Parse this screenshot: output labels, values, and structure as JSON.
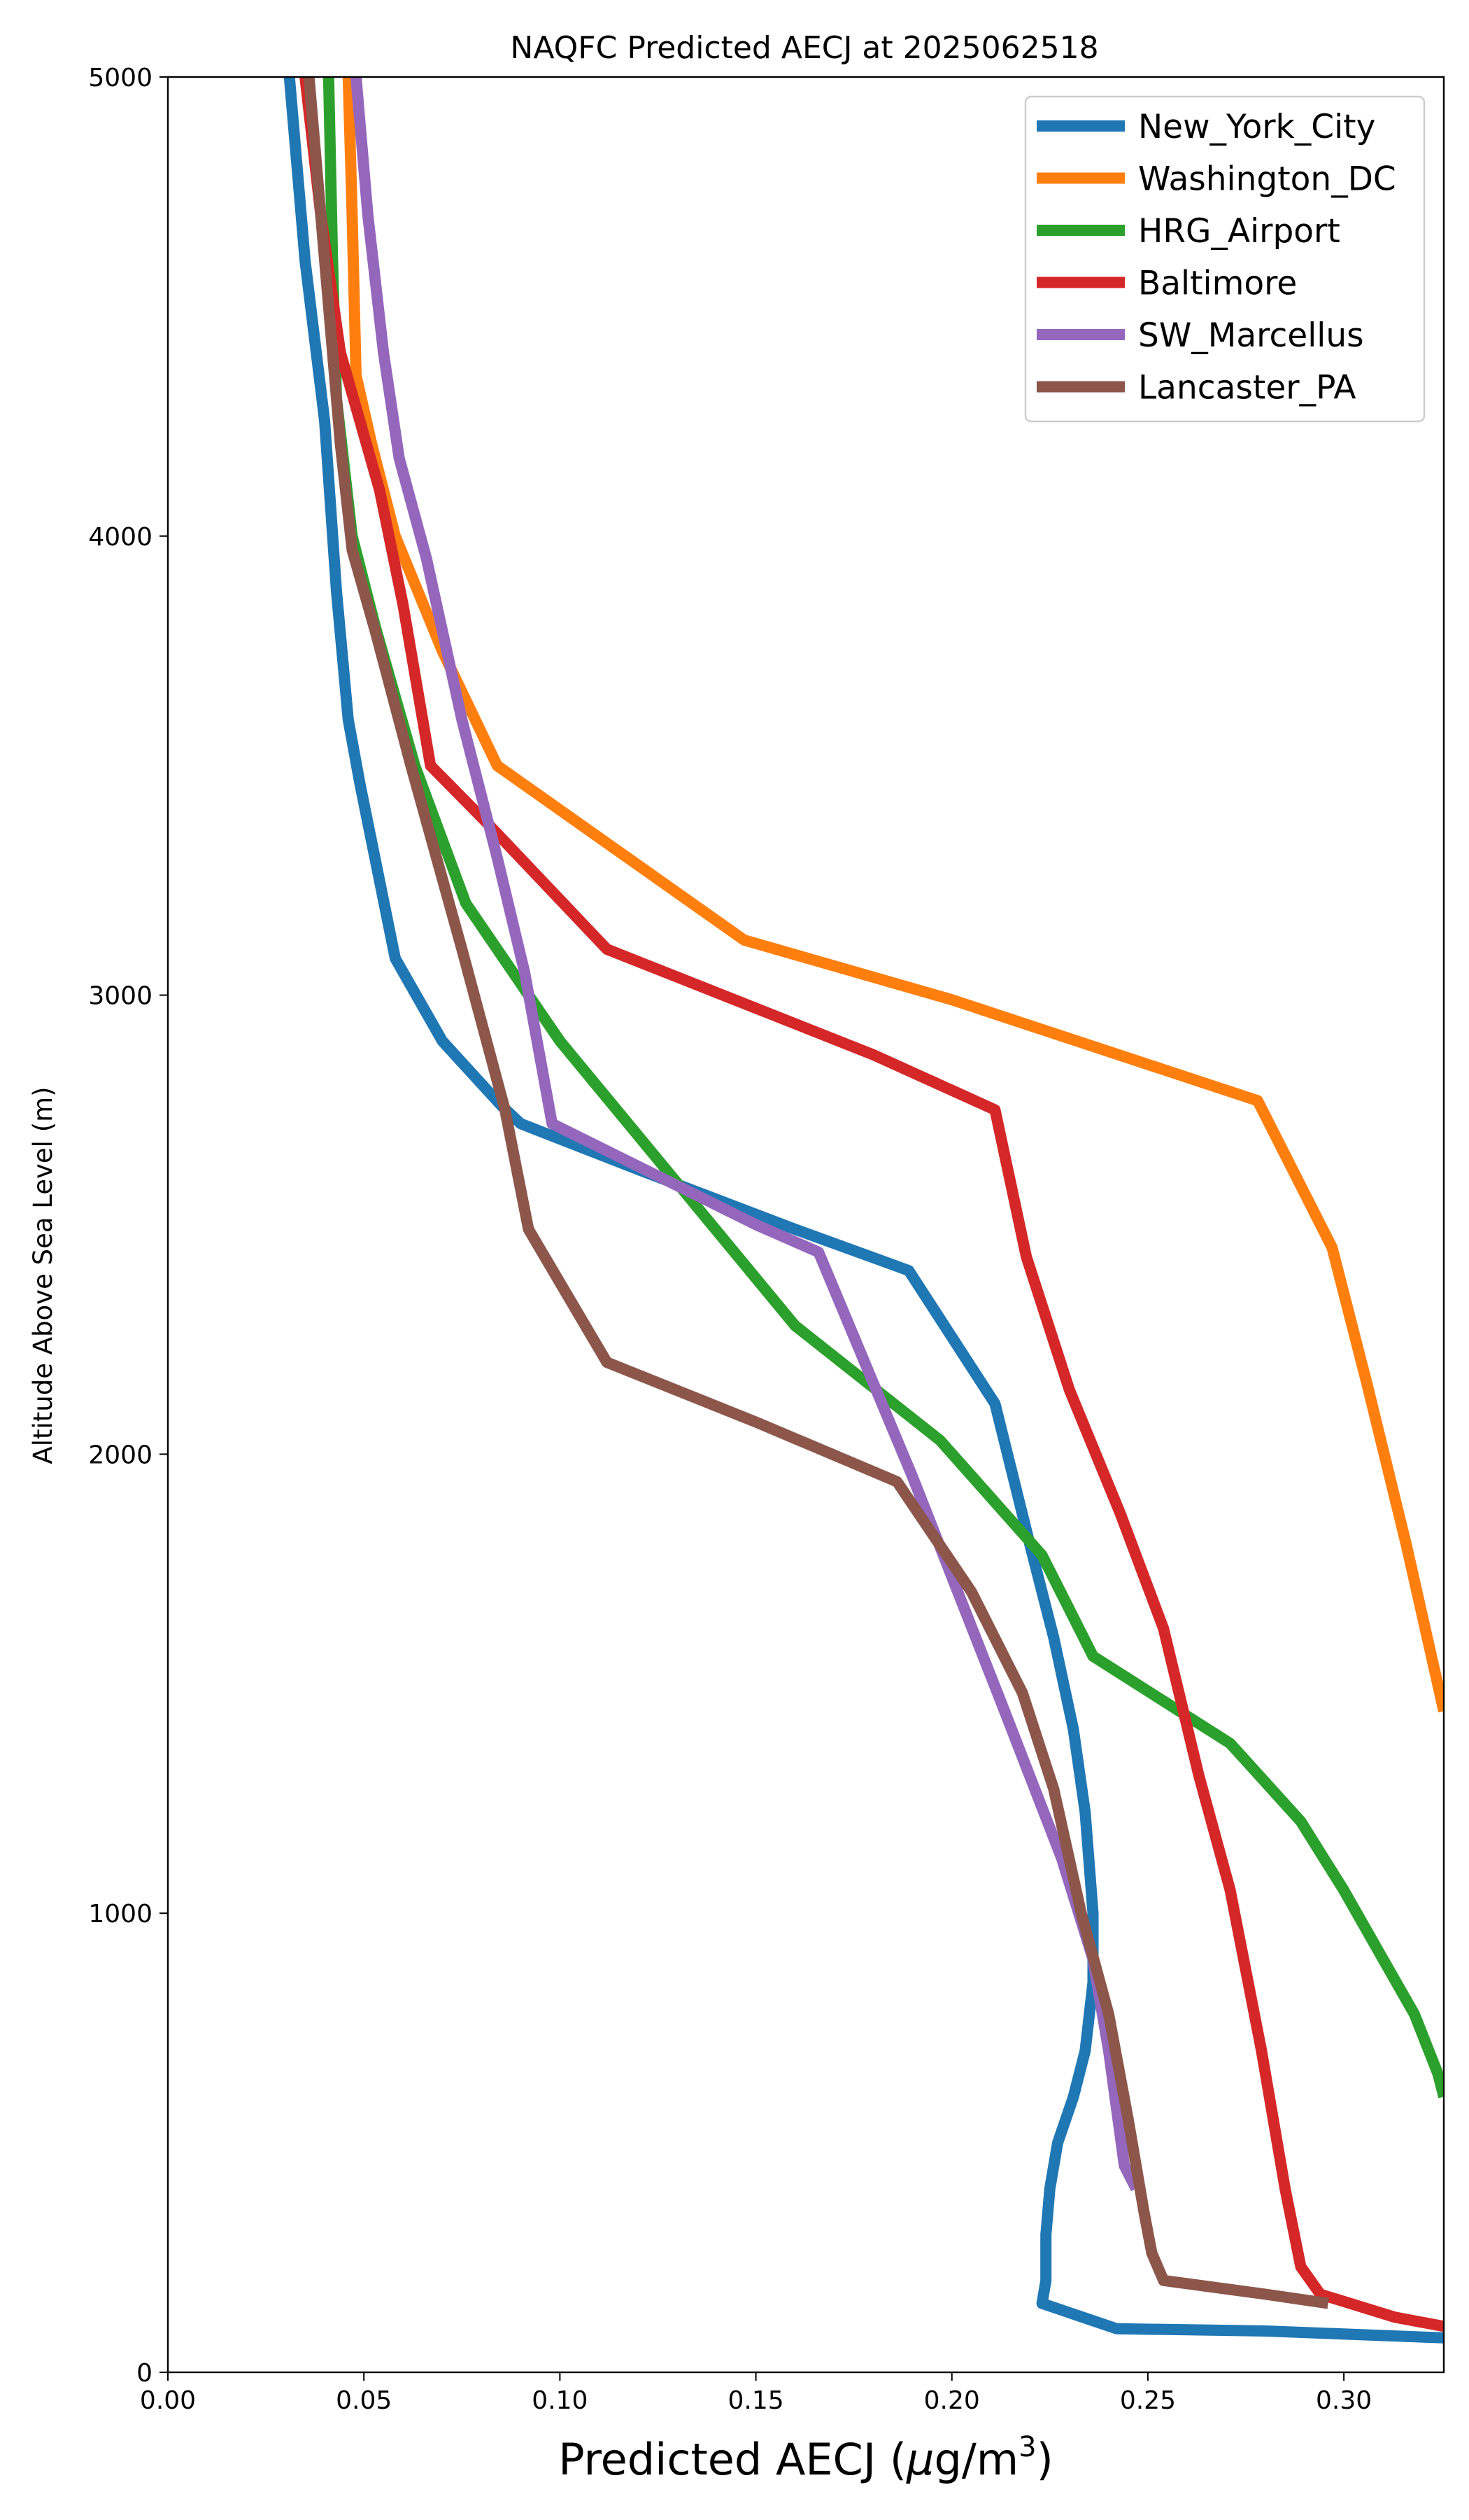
{
  "chart_data": {
    "type": "line",
    "title": "NAQFC Predicted AECJ at 2025062518",
    "xlabel_main": "Predicted AECJ (",
    "xlabel_mu": "μ",
    "xlabel_unit": "g/m",
    "xlabel_sup": "3",
    "xlabel_close": ")",
    "ylabel": "Altitude Above Sea Level (m)",
    "xlim": [
      0.0,
      0.3255
    ],
    "ylim": [
      0,
      5000
    ],
    "xticks": [
      "0.00",
      "0.05",
      "0.10",
      "0.15",
      "0.20",
      "0.25",
      "0.30"
    ],
    "yticks": [
      "0",
      "1000",
      "2000",
      "3000",
      "4000",
      "5000"
    ],
    "grid": false,
    "legend_position": "top-right",
    "series": [
      {
        "name": "New_York_City",
        "color": "#1f77b4",
        "points": [
          [
            0.031,
            5000
          ],
          [
            0.035,
            4600
          ],
          [
            0.04,
            4250
          ],
          [
            0.043,
            3880
          ],
          [
            0.046,
            3600
          ],
          [
            0.049,
            3460
          ],
          [
            0.058,
            3080
          ],
          [
            0.07,
            2900
          ],
          [
            0.085,
            2760
          ],
          [
            0.09,
            2720
          ],
          [
            0.12,
            2620
          ],
          [
            0.16,
            2490
          ],
          [
            0.189,
            2400
          ],
          [
            0.211,
            2110
          ],
          [
            0.22,
            1800
          ],
          [
            0.226,
            1600
          ],
          [
            0.231,
            1400
          ],
          [
            0.234,
            1220
          ],
          [
            0.236,
            1000
          ],
          [
            0.236,
            850
          ],
          [
            0.234,
            700
          ],
          [
            0.231,
            600
          ],
          [
            0.227,
            500
          ],
          [
            0.225,
            400
          ],
          [
            0.224,
            300
          ],
          [
            0.224,
            200
          ],
          [
            0.223,
            150
          ],
          [
            0.242,
            95
          ],
          [
            0.28,
            90
          ],
          [
            0.3255,
            75
          ]
        ]
      },
      {
        "name": "Washington_DC",
        "color": "#ff7f0e",
        "points": [
          [
            0.046,
            5000
          ],
          [
            0.047,
            4700
          ],
          [
            0.048,
            4350
          ],
          [
            0.052,
            4200
          ],
          [
            0.058,
            4000
          ],
          [
            0.07,
            3750
          ],
          [
            0.084,
            3500
          ],
          [
            0.147,
            3120
          ],
          [
            0.2,
            2990
          ],
          [
            0.278,
            2770
          ],
          [
            0.297,
            2450
          ],
          [
            0.306,
            2150
          ],
          [
            0.316,
            1800
          ],
          [
            0.3255,
            1440
          ]
        ]
      },
      {
        "name": "HRG_Airport",
        "color": "#2ca02c",
        "points": [
          [
            0.041,
            5000
          ],
          [
            0.042,
            4600
          ],
          [
            0.043,
            4300
          ],
          [
            0.047,
            4000
          ],
          [
            0.053,
            3800
          ],
          [
            0.063,
            3500
          ],
          [
            0.076,
            3200
          ],
          [
            0.1,
            2900
          ],
          [
            0.16,
            2280
          ],
          [
            0.197,
            2030
          ],
          [
            0.223,
            1780
          ],
          [
            0.236,
            1560
          ],
          [
            0.271,
            1370
          ],
          [
            0.289,
            1200
          ],
          [
            0.3,
            1050
          ],
          [
            0.31,
            900
          ],
          [
            0.318,
            780
          ],
          [
            0.324,
            650
          ],
          [
            0.3255,
            600
          ]
        ]
      },
      {
        "name": "Baltimore",
        "color": "#d62728",
        "points": [
          [
            0.035,
            5000
          ],
          [
            0.039,
            4700
          ],
          [
            0.044,
            4400
          ],
          [
            0.054,
            4100
          ],
          [
            0.06,
            3850
          ],
          [
            0.067,
            3500
          ],
          [
            0.082,
            3370
          ],
          [
            0.112,
            3100
          ],
          [
            0.18,
            2870
          ],
          [
            0.211,
            2750
          ],
          [
            0.219,
            2430
          ],
          [
            0.23,
            2140
          ],
          [
            0.243,
            1870
          ],
          [
            0.254,
            1620
          ],
          [
            0.263,
            1300
          ],
          [
            0.271,
            1050
          ],
          [
            0.279,
            700
          ],
          [
            0.285,
            400
          ],
          [
            0.289,
            230
          ],
          [
            0.294,
            170
          ],
          [
            0.313,
            120
          ],
          [
            0.3255,
            100
          ]
        ]
      },
      {
        "name": "SW_Marcellus",
        "color": "#9467bd",
        "points": [
          [
            0.048,
            5000
          ],
          [
            0.051,
            4700
          ],
          [
            0.055,
            4400
          ],
          [
            0.059,
            4170
          ],
          [
            0.066,
            3950
          ],
          [
            0.075,
            3600
          ],
          [
            0.084,
            3300
          ],
          [
            0.091,
            3050
          ],
          [
            0.098,
            2720
          ],
          [
            0.15,
            2500
          ],
          [
            0.166,
            2440
          ],
          [
            0.19,
            1950
          ],
          [
            0.213,
            1450
          ],
          [
            0.228,
            1120
          ],
          [
            0.236,
            900
          ],
          [
            0.24,
            700
          ],
          [
            0.244,
            450
          ],
          [
            0.247,
            400
          ]
        ]
      },
      {
        "name": "Lancaster_PA",
        "color": "#8c564b",
        "points": [
          [
            0.036,
            5000
          ],
          [
            0.039,
            4700
          ],
          [
            0.042,
            4400
          ],
          [
            0.044,
            4200
          ],
          [
            0.047,
            3970
          ],
          [
            0.053,
            3790
          ],
          [
            0.062,
            3500
          ],
          [
            0.075,
            3100
          ],
          [
            0.086,
            2750
          ],
          [
            0.092,
            2490
          ],
          [
            0.112,
            2200
          ],
          [
            0.15,
            2070
          ],
          [
            0.186,
            1940
          ],
          [
            0.205,
            1700
          ],
          [
            0.218,
            1480
          ],
          [
            0.226,
            1270
          ],
          [
            0.233,
            1000
          ],
          [
            0.24,
            780
          ],
          [
            0.245,
            550
          ],
          [
            0.249,
            350
          ],
          [
            0.251,
            260
          ],
          [
            0.254,
            200
          ],
          [
            0.28,
            170
          ],
          [
            0.296,
            150
          ]
        ]
      }
    ]
  }
}
